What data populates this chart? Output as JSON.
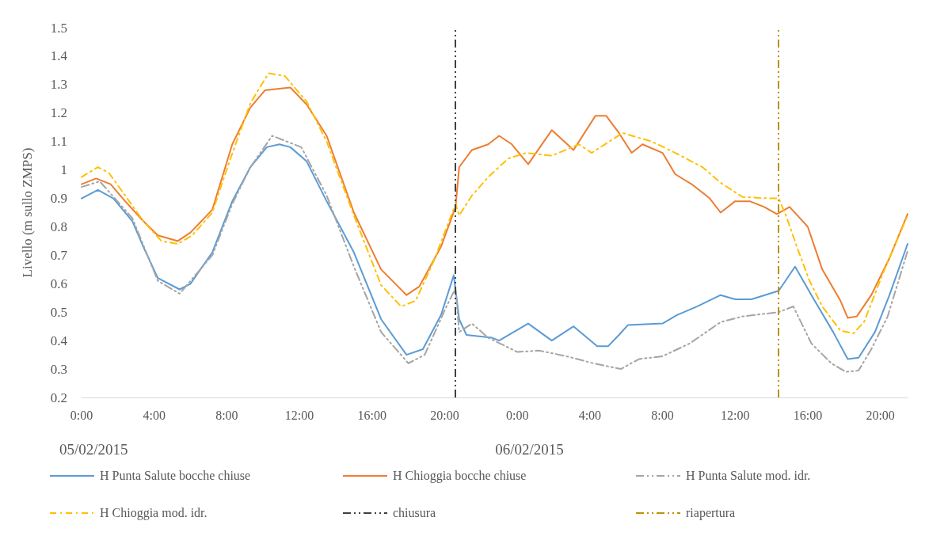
{
  "chart_data": {
    "type": "line",
    "ylabel": "Livello (m sullo ZMPS)",
    "xlim": [
      "2015-02-05T00:00",
      "2015-02-06T21:30"
    ],
    "xticks": [
      {
        "value": "2015-02-05T00:00",
        "label": "0:00"
      },
      {
        "value": "2015-02-05T04:00",
        "label": "4:00"
      },
      {
        "value": "2015-02-05T08:00",
        "label": "8:00"
      },
      {
        "value": "2015-02-05T12:00",
        "label": "12:00"
      },
      {
        "value": "2015-02-05T16:00",
        "label": "16:00"
      },
      {
        "value": "2015-02-05T20:00",
        "label": "20:00"
      },
      {
        "value": "2015-02-06T00:00",
        "label": "0:00"
      },
      {
        "value": "2015-02-06T04:00",
        "label": "4:00"
      },
      {
        "value": "2015-02-06T08:00",
        "label": "8:00"
      },
      {
        "value": "2015-02-06T12:00",
        "label": "12:00"
      },
      {
        "value": "2015-02-06T16:00",
        "label": "16:00"
      },
      {
        "value": "2015-02-06T20:00",
        "label": "20:00"
      }
    ],
    "ylim": [
      0.2,
      1.5
    ],
    "yticks": [
      0.2,
      0.3,
      0.4,
      0.5,
      0.6,
      0.7,
      0.8,
      0.9,
      1,
      1.1,
      1.2,
      1.3,
      1.4,
      1.5
    ],
    "grid": false,
    "legend": "bottom",
    "marker": "none",
    "series": [
      {
        "name": "H Punta Salute bocche chiuse",
        "color": "#5b9bd5",
        "line_style": "solid",
        "x": [
          "2015-02-05T00:00",
          "2015-02-05T00:54",
          "2015-02-05T01:45",
          "2015-02-05T02:48",
          "2015-02-05T03:24",
          "2015-02-05T04:12",
          "2015-02-05T05:24",
          "2015-02-05T06:00",
          "2015-02-05T07:12",
          "2015-02-05T08:18",
          "2015-02-05T09:18",
          "2015-02-05T10:12",
          "2015-02-05T10:54",
          "2015-02-05T11:30",
          "2015-02-05T12:24",
          "2015-02-05T13:30",
          "2015-02-05T15:00",
          "2015-02-05T16:30",
          "2015-02-05T17:54",
          "2015-02-05T18:48",
          "2015-02-05T19:48",
          "2015-02-05T20:30",
          "2015-02-05T20:48",
          "2015-02-05T21:12",
          "2015-02-05T22:36",
          "2015-02-05T23:00",
          "2015-02-06T00:36",
          "2015-02-06T01:54",
          "2015-02-06T03:06",
          "2015-02-06T04:24",
          "2015-02-06T05:00",
          "2015-02-06T05:36",
          "2015-02-06T06:06",
          "2015-02-06T08:00",
          "2015-02-06T08:48",
          "2015-02-06T09:54",
          "2015-02-06T11:12",
          "2015-02-06T12:00",
          "2015-02-06T12:54",
          "2015-02-06T14:24",
          "2015-02-06T15:18",
          "2015-02-06T16:12",
          "2015-02-06T17:24",
          "2015-02-06T18:12",
          "2015-02-06T18:48",
          "2015-02-06T19:42",
          "2015-02-06T20:30",
          "2015-02-06T21:30"
        ],
        "values": [
          0.9,
          0.93,
          0.9,
          0.82,
          0.73,
          0.62,
          0.58,
          0.6,
          0.71,
          0.89,
          1.01,
          1.08,
          1.09,
          1.08,
          1.03,
          0.89,
          0.71,
          0.475,
          0.35,
          0.37,
          0.49,
          0.63,
          0.475,
          0.42,
          0.41,
          0.4,
          0.46,
          0.4,
          0.45,
          0.38,
          0.38,
          0.42,
          0.455,
          0.46,
          0.49,
          0.52,
          0.56,
          0.545,
          0.545,
          0.575,
          0.66,
          0.56,
          0.43,
          0.335,
          0.34,
          0.43,
          0.56,
          0.74
        ]
      },
      {
        "name": "H Chioggia bocche chiuse",
        "color": "#ed7d31",
        "line_style": "solid",
        "x": [
          "2015-02-05T00:00",
          "2015-02-05T00:48",
          "2015-02-05T01:36",
          "2015-02-05T02:24",
          "2015-02-05T03:24",
          "2015-02-05T04:12",
          "2015-02-05T05:18",
          "2015-02-05T06:00",
          "2015-02-05T07:12",
          "2015-02-05T08:18",
          "2015-02-05T09:18",
          "2015-02-05T10:06",
          "2015-02-05T11:30",
          "2015-02-05T12:24",
          "2015-02-05T13:30",
          "2015-02-05T15:00",
          "2015-02-05T16:30",
          "2015-02-05T17:54",
          "2015-02-05T18:36",
          "2015-02-05T19:48",
          "2015-02-05T20:36",
          "2015-02-05T20:48",
          "2015-02-05T21:30",
          "2015-02-05T22:24",
          "2015-02-05T23:00",
          "2015-02-05T23:42",
          "2015-02-06T00:36",
          "2015-02-06T01:54",
          "2015-02-06T03:06",
          "2015-02-06T04:18",
          "2015-02-06T04:54",
          "2015-02-06T05:36",
          "2015-02-06T06:18",
          "2015-02-06T06:54",
          "2015-02-06T08:00",
          "2015-02-06T08:42",
          "2015-02-06T09:36",
          "2015-02-06T10:36",
          "2015-02-06T11:12",
          "2015-02-06T12:00",
          "2015-02-06T12:48",
          "2015-02-06T13:36",
          "2015-02-06T14:18",
          "2015-02-06T15:00",
          "2015-02-06T16:00",
          "2015-02-06T16:48",
          "2015-02-06T17:48",
          "2015-02-06T18:12",
          "2015-02-06T18:42",
          "2015-02-06T19:30",
          "2015-02-06T20:30",
          "2015-02-06T21:30"
        ],
        "values": [
          0.95,
          0.97,
          0.95,
          0.89,
          0.82,
          0.77,
          0.75,
          0.78,
          0.86,
          1.09,
          1.22,
          1.28,
          1.29,
          1.23,
          1.12,
          0.85,
          0.65,
          0.56,
          0.59,
          0.73,
          0.87,
          1.01,
          1.07,
          1.09,
          1.12,
          1.09,
          1.02,
          1.14,
          1.07,
          1.19,
          1.19,
          1.13,
          1.06,
          1.09,
          1.06,
          0.985,
          0.95,
          0.9,
          0.85,
          0.89,
          0.89,
          0.87,
          0.845,
          0.87,
          0.8,
          0.65,
          0.54,
          0.48,
          0.485,
          0.56,
          0.69,
          0.845
        ]
      },
      {
        "name": "H Punta Salute mod. idr.",
        "color": "#a5a5a5",
        "line_style": "dashed",
        "x": [
          "2015-02-05T00:00",
          "2015-02-05T01:00",
          "2015-02-05T02:48",
          "2015-02-05T04:12",
          "2015-02-05T05:24",
          "2015-02-05T07:12",
          "2015-02-05T08:18",
          "2015-02-05T09:18",
          "2015-02-05T10:30",
          "2015-02-05T12:06",
          "2015-02-05T13:30",
          "2015-02-05T15:00",
          "2015-02-05T16:30",
          "2015-02-05T18:00",
          "2015-02-05T18:54",
          "2015-02-05T20:06",
          "2015-02-05T20:36",
          "2015-02-05T20:48",
          "2015-02-05T21:30",
          "2015-02-05T22:24",
          "2015-02-06T00:00",
          "2015-02-06T01:12",
          "2015-02-06T02:42",
          "2015-02-06T04:12",
          "2015-02-06T05:42",
          "2015-02-06T06:42",
          "2015-02-06T08:00",
          "2015-02-06T09:30",
          "2015-02-06T11:12",
          "2015-02-06T12:24",
          "2015-02-06T14:24",
          "2015-02-06T15:12",
          "2015-02-06T16:12",
          "2015-02-06T17:18",
          "2015-02-06T18:06",
          "2015-02-06T18:48",
          "2015-02-06T19:30",
          "2015-02-06T20:24",
          "2015-02-06T21:30"
        ],
        "values": [
          0.94,
          0.96,
          0.83,
          0.61,
          0.565,
          0.7,
          0.88,
          1.01,
          1.12,
          1.08,
          0.91,
          0.66,
          0.43,
          0.32,
          0.35,
          0.52,
          0.585,
          0.43,
          0.46,
          0.41,
          0.36,
          0.365,
          0.345,
          0.32,
          0.3,
          0.335,
          0.345,
          0.39,
          0.465,
          0.485,
          0.5,
          0.52,
          0.39,
          0.32,
          0.29,
          0.295,
          0.37,
          0.485,
          0.715
        ]
      },
      {
        "name": "H Chioggia mod. idr.",
        "color": "#ffc000",
        "line_style": "dashdot",
        "x": [
          "2015-02-05T00:00",
          "2015-02-05T00:54",
          "2015-02-05T01:30",
          "2015-02-05T02:24",
          "2015-02-05T03:24",
          "2015-02-05T04:24",
          "2015-02-05T05:18",
          "2015-02-05T06:06",
          "2015-02-05T07:12",
          "2015-02-05T08:12",
          "2015-02-05T09:18",
          "2015-02-05T10:18",
          "2015-02-05T11:12",
          "2015-02-05T12:24",
          "2015-02-05T13:30",
          "2015-02-05T15:00",
          "2015-02-05T16:30",
          "2015-02-05T17:36",
          "2015-02-05T18:24",
          "2015-02-05T19:24",
          "2015-02-05T20:36",
          "2015-02-05T20:48",
          "2015-02-05T21:30",
          "2015-02-05T22:24",
          "2015-02-05T23:30",
          "2015-02-06T00:30",
          "2015-02-06T01:54",
          "2015-02-06T03:24",
          "2015-02-06T04:06",
          "2015-02-06T05:48",
          "2015-02-06T07:24",
          "2015-02-06T08:42",
          "2015-02-06T10:12",
          "2015-02-06T11:12",
          "2015-02-06T12:24",
          "2015-02-06T13:54",
          "2015-02-06T14:24",
          "2015-02-06T14:48",
          "2015-02-06T15:24",
          "2015-02-06T16:06",
          "2015-02-06T16:48",
          "2015-02-06T17:48",
          "2015-02-06T18:30",
          "2015-02-06T19:06",
          "2015-02-06T20:06",
          "2015-02-06T21:30"
        ],
        "values": [
          0.975,
          1.01,
          0.99,
          0.91,
          0.82,
          0.75,
          0.74,
          0.77,
          0.85,
          1.04,
          1.235,
          1.34,
          1.33,
          1.24,
          1.1,
          0.84,
          0.595,
          0.52,
          0.54,
          0.68,
          0.88,
          0.84,
          0.91,
          0.975,
          1.04,
          1.06,
          1.05,
          1.09,
          1.06,
          1.13,
          1.1,
          1.06,
          1.01,
          0.955,
          0.905,
          0.9,
          0.9,
          0.84,
          0.73,
          0.61,
          0.52,
          0.435,
          0.425,
          0.465,
          0.63,
          0.84
        ]
      }
    ],
    "ref_lines": [
      {
        "axis": "x",
        "value": "2015-02-05T20:36",
        "label": "chiusura",
        "color": "#404040",
        "line_style": "dashed"
      },
      {
        "axis": "x",
        "value": "2015-02-06T14:24",
        "label": "riapertura",
        "color": "#bf9000",
        "line_style": "dashed"
      }
    ],
    "annotations": [
      "05/02/2015",
      "06/02/2015"
    ]
  }
}
